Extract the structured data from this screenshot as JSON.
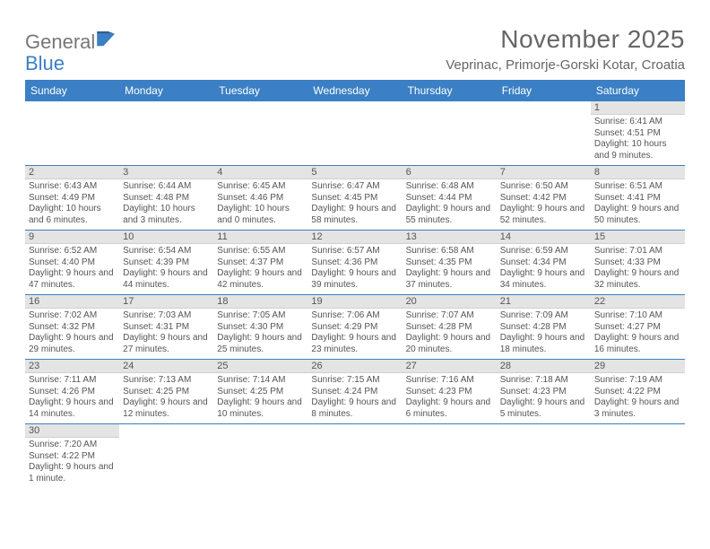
{
  "logo": {
    "general": "General",
    "blue": "Blue"
  },
  "title": "November 2025",
  "location": "Veprinac, Primorje-Gorski Kotar, Croatia",
  "colors": {
    "header_bg": "#3b7fc4",
    "header_text": "#ffffff",
    "daynum_bg": "#e4e4e4",
    "row_divider": "#3b7fc4",
    "text": "#555555"
  },
  "weekdays": [
    "Sunday",
    "Monday",
    "Tuesday",
    "Wednesday",
    "Thursday",
    "Friday",
    "Saturday"
  ],
  "weeks": [
    [
      null,
      null,
      null,
      null,
      null,
      null,
      {
        "n": "1",
        "sr": "Sunrise: 6:41 AM",
        "ss": "Sunset: 4:51 PM",
        "dl": "Daylight: 10 hours and 9 minutes."
      }
    ],
    [
      {
        "n": "2",
        "sr": "Sunrise: 6:43 AM",
        "ss": "Sunset: 4:49 PM",
        "dl": "Daylight: 10 hours and 6 minutes."
      },
      {
        "n": "3",
        "sr": "Sunrise: 6:44 AM",
        "ss": "Sunset: 4:48 PM",
        "dl": "Daylight: 10 hours and 3 minutes."
      },
      {
        "n": "4",
        "sr": "Sunrise: 6:45 AM",
        "ss": "Sunset: 4:46 PM",
        "dl": "Daylight: 10 hours and 0 minutes."
      },
      {
        "n": "5",
        "sr": "Sunrise: 6:47 AM",
        "ss": "Sunset: 4:45 PM",
        "dl": "Daylight: 9 hours and 58 minutes."
      },
      {
        "n": "6",
        "sr": "Sunrise: 6:48 AM",
        "ss": "Sunset: 4:44 PM",
        "dl": "Daylight: 9 hours and 55 minutes."
      },
      {
        "n": "7",
        "sr": "Sunrise: 6:50 AM",
        "ss": "Sunset: 4:42 PM",
        "dl": "Daylight: 9 hours and 52 minutes."
      },
      {
        "n": "8",
        "sr": "Sunrise: 6:51 AM",
        "ss": "Sunset: 4:41 PM",
        "dl": "Daylight: 9 hours and 50 minutes."
      }
    ],
    [
      {
        "n": "9",
        "sr": "Sunrise: 6:52 AM",
        "ss": "Sunset: 4:40 PM",
        "dl": "Daylight: 9 hours and 47 minutes."
      },
      {
        "n": "10",
        "sr": "Sunrise: 6:54 AM",
        "ss": "Sunset: 4:39 PM",
        "dl": "Daylight: 9 hours and 44 minutes."
      },
      {
        "n": "11",
        "sr": "Sunrise: 6:55 AM",
        "ss": "Sunset: 4:37 PM",
        "dl": "Daylight: 9 hours and 42 minutes."
      },
      {
        "n": "12",
        "sr": "Sunrise: 6:57 AM",
        "ss": "Sunset: 4:36 PM",
        "dl": "Daylight: 9 hours and 39 minutes."
      },
      {
        "n": "13",
        "sr": "Sunrise: 6:58 AM",
        "ss": "Sunset: 4:35 PM",
        "dl": "Daylight: 9 hours and 37 minutes."
      },
      {
        "n": "14",
        "sr": "Sunrise: 6:59 AM",
        "ss": "Sunset: 4:34 PM",
        "dl": "Daylight: 9 hours and 34 minutes."
      },
      {
        "n": "15",
        "sr": "Sunrise: 7:01 AM",
        "ss": "Sunset: 4:33 PM",
        "dl": "Daylight: 9 hours and 32 minutes."
      }
    ],
    [
      {
        "n": "16",
        "sr": "Sunrise: 7:02 AM",
        "ss": "Sunset: 4:32 PM",
        "dl": "Daylight: 9 hours and 29 minutes."
      },
      {
        "n": "17",
        "sr": "Sunrise: 7:03 AM",
        "ss": "Sunset: 4:31 PM",
        "dl": "Daylight: 9 hours and 27 minutes."
      },
      {
        "n": "18",
        "sr": "Sunrise: 7:05 AM",
        "ss": "Sunset: 4:30 PM",
        "dl": "Daylight: 9 hours and 25 minutes."
      },
      {
        "n": "19",
        "sr": "Sunrise: 7:06 AM",
        "ss": "Sunset: 4:29 PM",
        "dl": "Daylight: 9 hours and 23 minutes."
      },
      {
        "n": "20",
        "sr": "Sunrise: 7:07 AM",
        "ss": "Sunset: 4:28 PM",
        "dl": "Daylight: 9 hours and 20 minutes."
      },
      {
        "n": "21",
        "sr": "Sunrise: 7:09 AM",
        "ss": "Sunset: 4:28 PM",
        "dl": "Daylight: 9 hours and 18 minutes."
      },
      {
        "n": "22",
        "sr": "Sunrise: 7:10 AM",
        "ss": "Sunset: 4:27 PM",
        "dl": "Daylight: 9 hours and 16 minutes."
      }
    ],
    [
      {
        "n": "23",
        "sr": "Sunrise: 7:11 AM",
        "ss": "Sunset: 4:26 PM",
        "dl": "Daylight: 9 hours and 14 minutes."
      },
      {
        "n": "24",
        "sr": "Sunrise: 7:13 AM",
        "ss": "Sunset: 4:25 PM",
        "dl": "Daylight: 9 hours and 12 minutes."
      },
      {
        "n": "25",
        "sr": "Sunrise: 7:14 AM",
        "ss": "Sunset: 4:25 PM",
        "dl": "Daylight: 9 hours and 10 minutes."
      },
      {
        "n": "26",
        "sr": "Sunrise: 7:15 AM",
        "ss": "Sunset: 4:24 PM",
        "dl": "Daylight: 9 hours and 8 minutes."
      },
      {
        "n": "27",
        "sr": "Sunrise: 7:16 AM",
        "ss": "Sunset: 4:23 PM",
        "dl": "Daylight: 9 hours and 6 minutes."
      },
      {
        "n": "28",
        "sr": "Sunrise: 7:18 AM",
        "ss": "Sunset: 4:23 PM",
        "dl": "Daylight: 9 hours and 5 minutes."
      },
      {
        "n": "29",
        "sr": "Sunrise: 7:19 AM",
        "ss": "Sunset: 4:22 PM",
        "dl": "Daylight: 9 hours and 3 minutes."
      }
    ],
    [
      {
        "n": "30",
        "sr": "Sunrise: 7:20 AM",
        "ss": "Sunset: 4:22 PM",
        "dl": "Daylight: 9 hours and 1 minute."
      },
      null,
      null,
      null,
      null,
      null,
      null
    ]
  ]
}
